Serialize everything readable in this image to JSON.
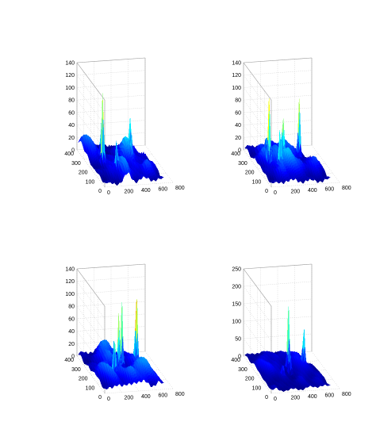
{
  "chart_data": [
    {
      "type": "surface",
      "xlabel": "",
      "ylabel": "",
      "zlabel": "",
      "x_ticks": [
        "0",
        "200",
        "400",
        "600",
        "800"
      ],
      "y_ticks": [
        "0",
        "100",
        "200",
        "300",
        "400"
      ],
      "z_ticks": [
        "0",
        "20",
        "40",
        "60",
        "80",
        "100",
        "120",
        "140"
      ],
      "xlim": [
        0,
        800
      ],
      "ylim": [
        0,
        400
      ],
      "zlim": [
        0,
        140
      ],
      "grid": true,
      "colormap": "jet",
      "peaks": [
        {
          "x": 140,
          "y": 200,
          "z": 118
        },
        {
          "x": 180,
          "y": 270,
          "z": 55
        },
        {
          "x": 230,
          "y": 110,
          "z": 40
        },
        {
          "x": 520,
          "y": 270,
          "z": 46
        },
        {
          "x": 470,
          "y": 190,
          "z": 30
        }
      ]
    },
    {
      "type": "surface",
      "xlabel": "",
      "ylabel": "",
      "zlabel": "",
      "x_ticks": [
        "0",
        "200",
        "400",
        "600",
        "800"
      ],
      "y_ticks": [
        "0",
        "100",
        "200",
        "300",
        "400"
      ],
      "z_ticks": [
        "0",
        "20",
        "40",
        "60",
        "80",
        "100",
        "120",
        "140"
      ],
      "xlim": [
        0,
        800
      ],
      "ylim": [
        0,
        400
      ],
      "zlim": [
        0,
        140
      ],
      "grid": true,
      "colormap": "jet",
      "peaks": [
        {
          "x": 120,
          "y": 180,
          "z": 100
        },
        {
          "x": 300,
          "y": 200,
          "z": 60
        },
        {
          "x": 530,
          "y": 250,
          "z": 95
        },
        {
          "x": 200,
          "y": 120,
          "z": 55
        },
        {
          "x": 160,
          "y": 270,
          "z": 30
        }
      ]
    },
    {
      "type": "surface",
      "xlabel": "",
      "ylabel": "",
      "zlabel": "",
      "x_ticks": [
        "0",
        "200",
        "400",
        "600",
        "800"
      ],
      "y_ticks": [
        "0",
        "100",
        "200",
        "300",
        "400"
      ],
      "z_ticks": [
        "0",
        "20",
        "40",
        "60",
        "80",
        "100",
        "120",
        "140"
      ],
      "xlim": [
        0,
        800
      ],
      "ylim": [
        0,
        400
      ],
      "zlim": [
        0,
        140
      ],
      "grid": true,
      "colormap": "jet",
      "peaks": [
        {
          "x": 220,
          "y": 130,
          "z": 62
        },
        {
          "x": 320,
          "y": 190,
          "z": 88
        },
        {
          "x": 380,
          "y": 220,
          "z": 108
        },
        {
          "x": 560,
          "y": 230,
          "z": 110
        },
        {
          "x": 300,
          "y": 170,
          "z": 52
        }
      ]
    },
    {
      "type": "surface",
      "xlabel": "",
      "ylabel": "",
      "zlabel": "",
      "x_ticks": [
        "0",
        "200",
        "400",
        "600",
        "800"
      ],
      "y_ticks": [
        "0",
        "100",
        "200",
        "300",
        "400"
      ],
      "z_ticks": [
        "0",
        "50",
        "100",
        "150",
        "200",
        "250"
      ],
      "xlim": [
        0,
        800
      ],
      "ylim": [
        0,
        400
      ],
      "zlim": [
        0,
        250
      ],
      "grid": true,
      "colormap": "jet",
      "peaks": [
        {
          "x": 380,
          "y": 220,
          "z": 180
        },
        {
          "x": 560,
          "y": 220,
          "z": 100
        },
        {
          "x": 360,
          "y": 170,
          "z": 60
        },
        {
          "x": 250,
          "y": 140,
          "z": 35
        }
      ]
    }
  ]
}
